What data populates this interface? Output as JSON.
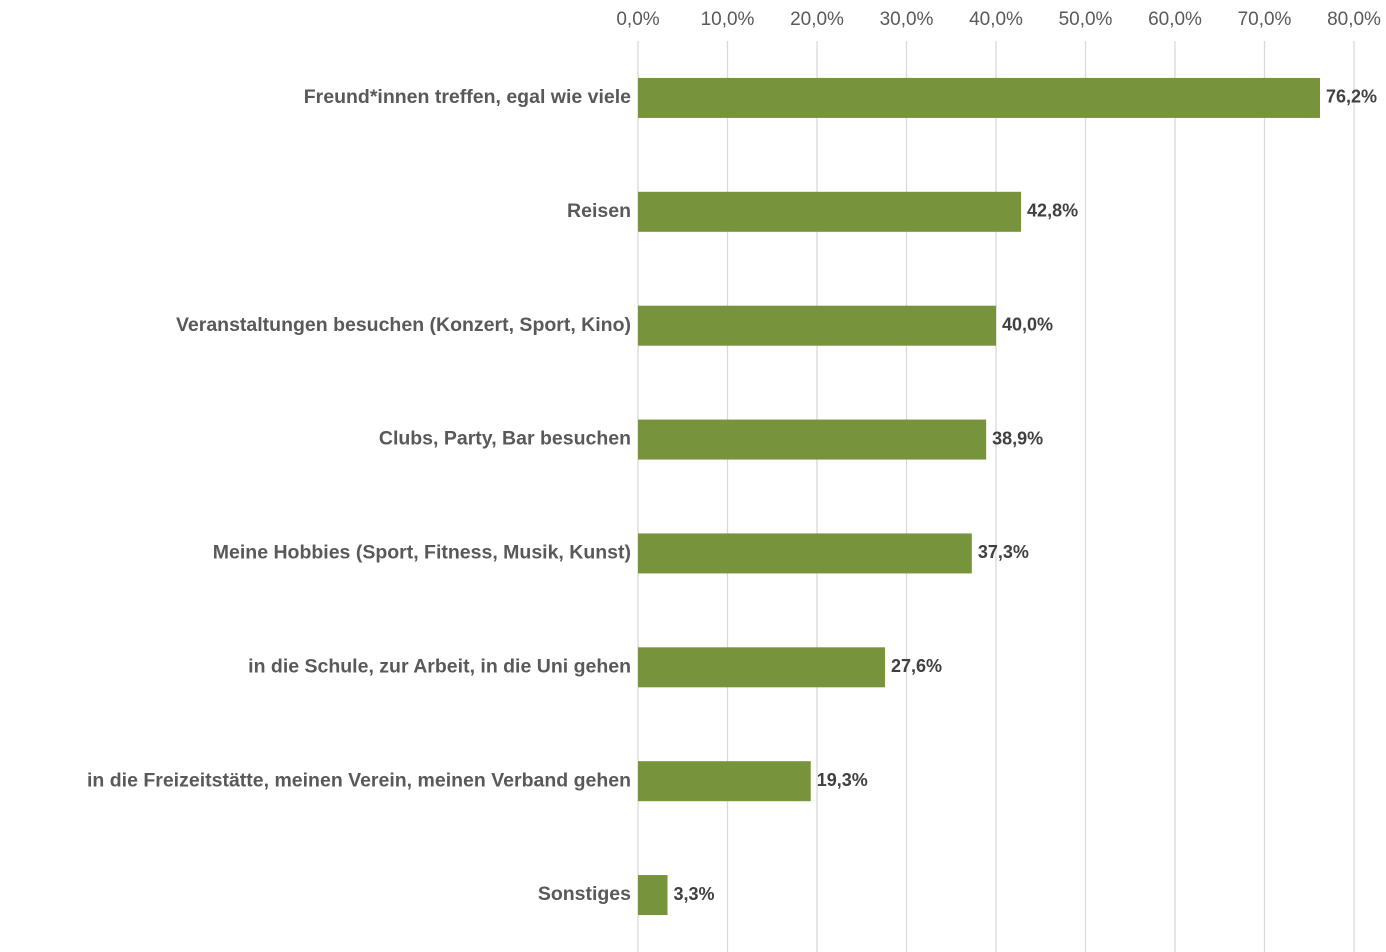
{
  "chart_data": {
    "type": "bar",
    "orientation": "horizontal",
    "categories": [
      "Freund*innen treffen, egal wie viele",
      "Reisen",
      "Veranstaltungen besuchen (Konzert, Sport, Kino)",
      "Clubs, Party, Bar besuchen",
      "Meine Hobbies (Sport, Fitness, Musik, Kunst)",
      "in die Schule, zur Arbeit, in die Uni gehen",
      "in die Freizeitstätte, meinen Verein, meinen Verband gehen",
      "Sonstiges"
    ],
    "values": [
      76.2,
      42.8,
      40.0,
      38.9,
      37.3,
      27.6,
      19.3,
      3.3
    ],
    "value_labels": [
      "76,2%",
      "42,8%",
      "40,0%",
      "38,9%",
      "37,3%",
      "27,6%",
      "19,3%",
      "3,3%"
    ],
    "color": "#77933c",
    "xlim": [
      0,
      80
    ],
    "xticks": [
      {
        "value": 0,
        "label": "0,0%"
      },
      {
        "value": 10,
        "label": "10,0%"
      },
      {
        "value": 20,
        "label": "20,0%"
      },
      {
        "value": 30,
        "label": "30,0%"
      },
      {
        "value": 40,
        "label": "40,0%"
      },
      {
        "value": 50,
        "label": "50,0%"
      },
      {
        "value": 60,
        "label": "60,0%"
      },
      {
        "value": 70,
        "label": "70,0%"
      },
      {
        "value": 80,
        "label": "80,0%"
      }
    ],
    "grid": true
  }
}
